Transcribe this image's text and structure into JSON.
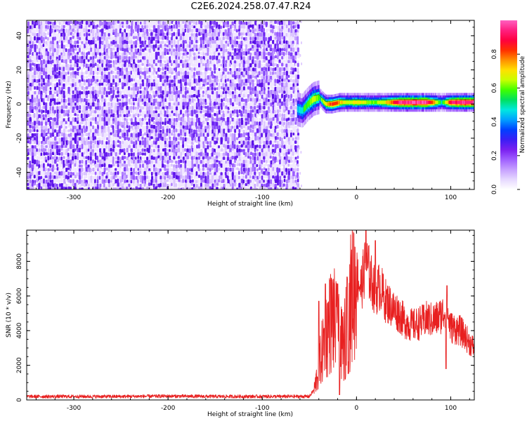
{
  "figure": {
    "title": "C2E6.2024.258.07.47.R24"
  },
  "colors": {
    "snr_line": "#e82020",
    "axis": "#000000",
    "spectro_bg": "#ffffff"
  },
  "chart_data": [
    {
      "type": "heatmap",
      "name": "spectrogram",
      "xlabel": "Height of straight line (km)",
      "ylabel": "Frequency (Hz)",
      "xlim": [
        -350,
        125
      ],
      "ylim": [
        -50,
        49
      ],
      "xticks": [
        -300,
        -200,
        -100,
        0,
        100
      ],
      "yticks": [
        -40,
        -20,
        0,
        20,
        40
      ],
      "grid": false,
      "colorbar": {
        "label": "Normalized spectral amplitude",
        "range": [
          0,
          1
        ],
        "ticks": [
          "0.0",
          "0.2",
          "0.4",
          "0.6",
          "0.8"
        ],
        "colormap": [
          "#ffffff",
          "#e6d8ff",
          "#c6a0ff",
          "#a060ff",
          "#7a20f0",
          "#3b1ef5",
          "#0040ff",
          "#00a0ff",
          "#00e8e0",
          "#00e060",
          "#40ff00",
          "#c8ff00",
          "#ffe000",
          "#ff9000",
          "#ff3000",
          "#ff0040",
          "#ff2080",
          "#ff60c0"
        ]
      },
      "noise_region": {
        "x_range": [
          -350,
          -63
        ],
        "level": "low",
        "description_level": 0.3
      },
      "signal_trace": [
        {
          "x": -63,
          "y": -3,
          "amp": 0.45
        },
        {
          "x": -58,
          "y": -4,
          "amp": 0.5
        },
        {
          "x": -52,
          "y": 0,
          "amp": 0.6
        },
        {
          "x": -46,
          "y": 3,
          "amp": 0.65
        },
        {
          "x": -40,
          "y": 4,
          "amp": 0.55
        },
        {
          "x": -33,
          "y": 0,
          "amp": 0.7
        },
        {
          "x": -26,
          "y": 0,
          "amp": 0.85
        },
        {
          "x": -18,
          "y": 1,
          "amp": 0.75
        },
        {
          "x": -8,
          "y": 1,
          "amp": 0.65
        },
        {
          "x": 0,
          "y": 1,
          "amp": 0.72
        },
        {
          "x": 15,
          "y": 1,
          "amp": 0.6
        },
        {
          "x": 30,
          "y": 1,
          "amp": 0.68
        },
        {
          "x": 45,
          "y": 1,
          "amp": 0.95
        },
        {
          "x": 60,
          "y": 1,
          "amp": 0.98
        },
        {
          "x": 75,
          "y": 1,
          "amp": 0.96
        },
        {
          "x": 90,
          "y": 1,
          "amp": 0.5
        },
        {
          "x": 100,
          "y": 1,
          "amp": 0.9
        },
        {
          "x": 112,
          "y": 1,
          "amp": 0.97
        },
        {
          "x": 125,
          "y": 1,
          "amp": 0.95
        }
      ]
    },
    {
      "type": "line",
      "name": "snr",
      "xlabel": "Height of straight line (km)",
      "ylabel": "SNR (10 * v/v)",
      "xlim": [
        -350,
        125
      ],
      "ylim": [
        0,
        9800
      ],
      "xticks": [
        -300,
        -200,
        -100,
        0,
        100
      ],
      "yticks": [
        0,
        2000,
        4000,
        6000,
        8000
      ],
      "grid": false,
      "series": [
        {
          "x": [
            -350,
            -300,
            -250,
            -200,
            -150,
            -100,
            -75,
            -50,
            -45,
            -40,
            -35,
            -30,
            -25,
            -20,
            -15,
            -10,
            -5,
            0,
            5,
            10,
            15,
            20,
            25,
            30,
            35,
            40,
            45,
            50,
            55,
            60,
            65,
            70,
            75,
            80,
            85,
            90,
            95,
            100,
            105,
            110,
            115,
            120,
            125
          ],
          "y": [
            200,
            200,
            200,
            220,
            200,
            200,
            200,
            200,
            600,
            1800,
            3200,
            4200,
            4800,
            3800,
            3000,
            4200,
            6200,
            7200,
            6500,
            8000,
            7000,
            6200,
            6600,
            5800,
            5500,
            5200,
            5000,
            4600,
            4400,
            4300,
            4400,
            4500,
            4700,
            4600,
            4700,
            4900,
            5200,
            4200,
            4100,
            4000,
            3700,
            3300,
            3000
          ],
          "peaks": [
            {
              "x": -40,
              "y": 5700
            },
            {
              "x": -33,
              "y": 6700
            },
            {
              "x": -28,
              "y": 6900
            },
            {
              "x": -20,
              "y": 6700
            },
            {
              "x": -10,
              "y": 7100
            },
            {
              "x": 10,
              "y": 9800
            },
            {
              "x": 20,
              "y": 9200
            },
            {
              "x": 96,
              "y": 6600
            }
          ],
          "dips": [
            {
              "x": -18,
              "y": 300
            },
            {
              "x": -12,
              "y": 1200
            },
            {
              "x": 95,
              "y": 1800
            }
          ]
        }
      ]
    }
  ]
}
